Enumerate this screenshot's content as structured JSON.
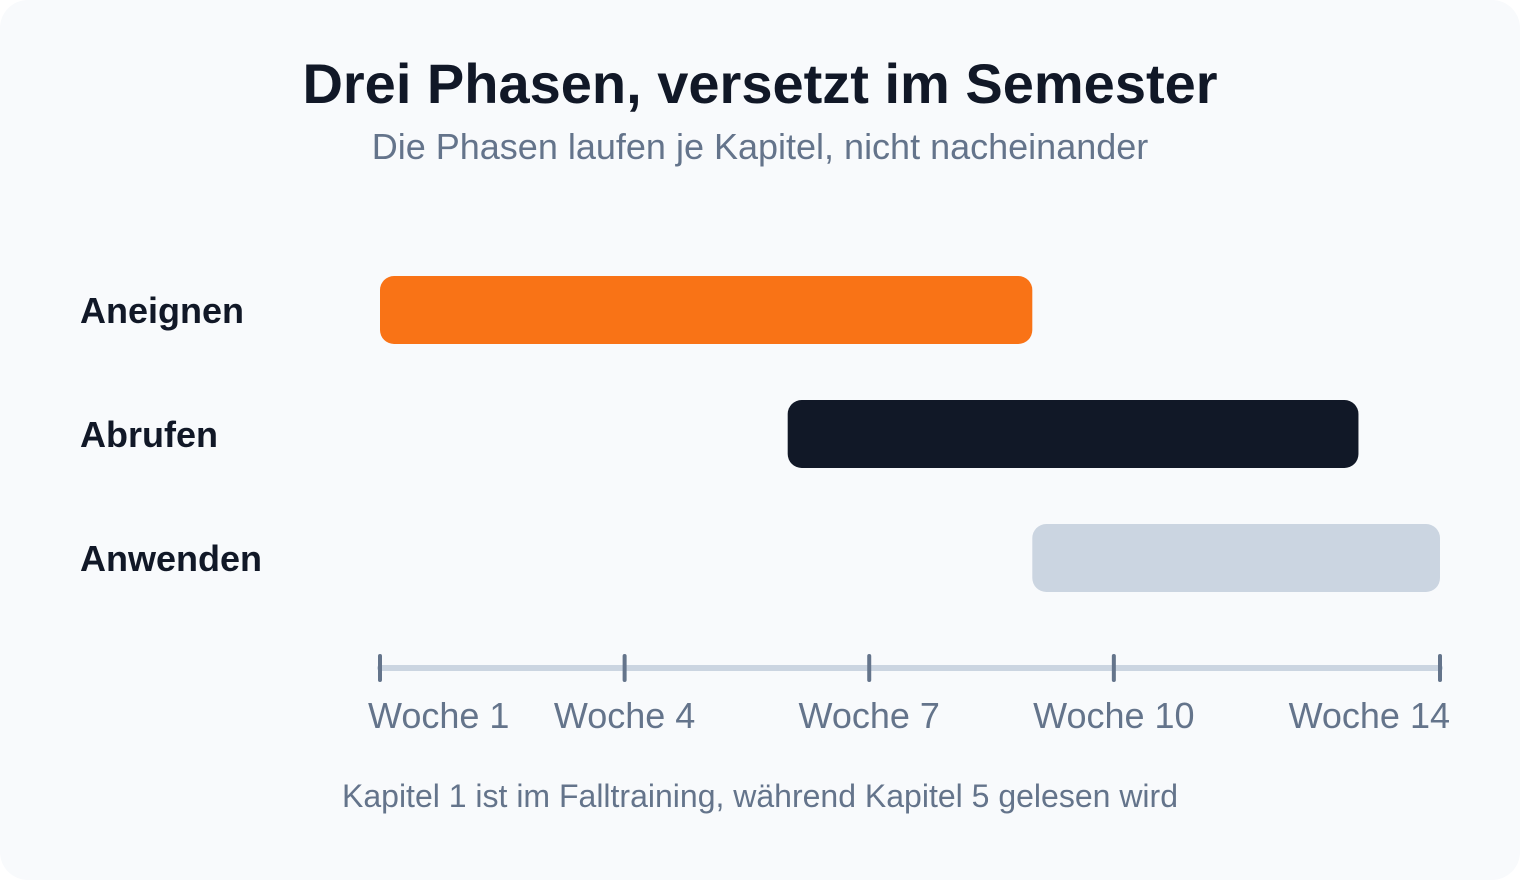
{
  "title": "Drei Phasen, versetzt im Semester",
  "subtitle": "Die Phasen laufen je Kapitel, nicht nacheinander",
  "footnote": "Kapitel 1 ist im Falltraining, während Kapitel 5 gelesen wird",
  "chart_data": {
    "type": "bar",
    "orientation": "horizontal-range",
    "title": "Drei Phasen, versetzt im Semester",
    "subtitle": "Die Phasen laufen je Kapitel, nicht nacheinander",
    "xlim": [
      1,
      14
    ],
    "ticks": [
      {
        "value": 1,
        "label": "Woche 1"
      },
      {
        "value": 4,
        "label": "Woche 4"
      },
      {
        "value": 7,
        "label": "Woche 7"
      },
      {
        "value": 10,
        "label": "Woche 10"
      },
      {
        "value": 14,
        "label": "Woche 14"
      }
    ],
    "phases": [
      {
        "label": "Aneignen",
        "start": 1,
        "end": 9,
        "color": "#f97316"
      },
      {
        "label": "Abrufen",
        "start": 6,
        "end": 13,
        "color": "#111827"
      },
      {
        "label": "Anwenden",
        "start": 9,
        "end": 14,
        "color": "#cbd5e1"
      }
    ],
    "grid": false,
    "legend": "none",
    "axis_color": "#cbd5e1",
    "tick_color": "#64748b"
  }
}
